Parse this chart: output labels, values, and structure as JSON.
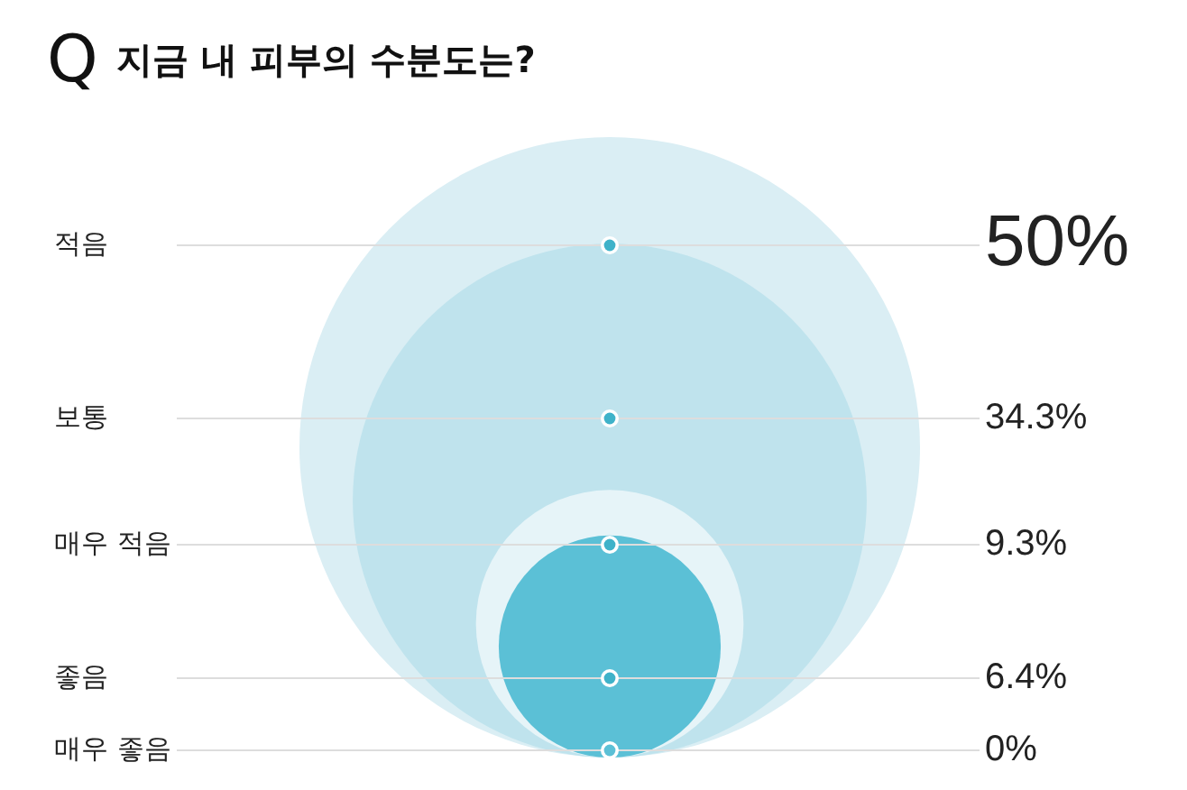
{
  "chart_data": {
    "type": "other",
    "title": "Q 지금 내 피부의 수분도는?",
    "categories": [
      "적음",
      "보통",
      "매우 적음",
      "좋음",
      "매우 좋음"
    ],
    "values": [
      50,
      34.3,
      9.3,
      6.4,
      0
    ],
    "value_labels": [
      "50%",
      "34.3%",
      "9.3%",
      "6.4%",
      "0%"
    ],
    "colors": [
      "#daeef4",
      "#bfe3ed",
      "#e6f4f8",
      "#5bc0d6",
      "#5bc0d6"
    ]
  }
}
